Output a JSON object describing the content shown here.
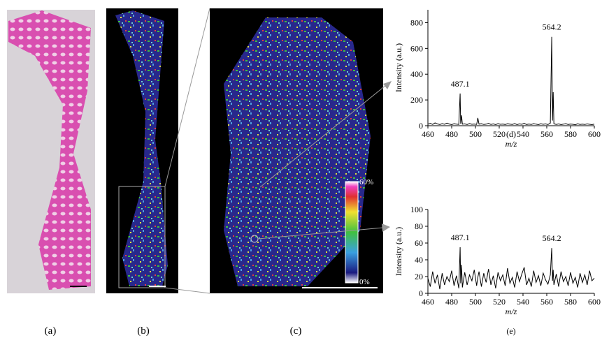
{
  "panel_labels": [
    "(a)",
    "(b)",
    "(c)"
  ],
  "colorbar": {
    "max_label": "60%",
    "min_label": "0%"
  },
  "chart_data": [
    {
      "type": "line",
      "panel_label": "(d)",
      "x_label": "m/z",
      "y_label": "Intensity (a.u.)",
      "color": "#000000",
      "xlim": [
        460,
        600
      ],
      "xticks": [
        460,
        480,
        500,
        520,
        540,
        560,
        580,
        600
      ],
      "ylim": [
        0,
        900
      ],
      "yticks": [
        0,
        200,
        400,
        600,
        800
      ],
      "x": [
        460,
        462,
        464,
        466,
        468,
        470,
        472,
        474,
        476,
        478,
        480,
        482,
        484,
        486,
        487.1,
        487.6,
        488.3,
        489,
        491,
        493,
        495,
        497,
        499,
        501,
        502,
        503,
        505,
        507,
        509,
        511,
        513,
        515,
        517,
        519,
        521,
        523,
        525,
        527,
        529,
        531,
        533,
        535,
        537,
        539,
        541,
        543,
        545,
        547,
        549,
        551,
        553,
        555,
        557,
        559,
        561,
        563,
        564.2,
        564.8,
        565.4,
        566,
        568,
        570,
        572,
        574,
        576,
        578,
        580,
        582,
        584,
        586,
        588,
        590,
        592,
        594,
        596,
        598,
        600
      ],
      "values": [
        12,
        18,
        10,
        22,
        14,
        9,
        16,
        11,
        20,
        13,
        8,
        15,
        12,
        10,
        250,
        15,
        80,
        12,
        14,
        9,
        17,
        11,
        13,
        10,
        60,
        12,
        15,
        9,
        12,
        18,
        10,
        14,
        8,
        16,
        11,
        13,
        9,
        15,
        12,
        10,
        17,
        8,
        14,
        11,
        19,
        9,
        13,
        10,
        16,
        12,
        8,
        15,
        11,
        14,
        9,
        20,
        690,
        40,
        260,
        15,
        10,
        14,
        8,
        12,
        16,
        9,
        13,
        11,
        7,
        15,
        10,
        12,
        9,
        14,
        11,
        8,
        12
      ],
      "annotations": [
        {
          "text": "487.1",
          "x": 487.1
        },
        {
          "text": "564.2",
          "x": 564.2
        }
      ]
    },
    {
      "type": "line",
      "panel_label": "(e)",
      "x_label": "m/z",
      "y_label": "Intensity (a.u.)",
      "color": "#000000",
      "xlim": [
        460,
        600
      ],
      "xticks": [
        460,
        480,
        500,
        520,
        540,
        560,
        580,
        600
      ],
      "ylim": [
        0,
        100
      ],
      "yticks": [
        0,
        20,
        40,
        60,
        80,
        100
      ],
      "x": [
        460,
        462,
        464,
        466,
        468,
        470,
        472,
        474,
        476,
        478,
        480,
        482,
        484,
        486,
        487.1,
        487.6,
        488.3,
        489,
        491,
        493,
        495,
        497,
        499,
        501,
        502,
        503,
        505,
        507,
        509,
        511,
        513,
        515,
        517,
        519,
        521,
        523,
        525,
        527,
        529,
        531,
        533,
        535,
        537,
        539,
        541,
        543,
        545,
        547,
        549,
        551,
        553,
        555,
        557,
        559,
        561,
        563,
        564.2,
        564.8,
        565.4,
        566,
        568,
        570,
        572,
        574,
        576,
        578,
        580,
        582,
        584,
        586,
        588,
        590,
        592,
        594,
        596,
        598,
        600
      ],
      "values": [
        18,
        8,
        26,
        12,
        22,
        5,
        24,
        10,
        20,
        14,
        27,
        9,
        21,
        6,
        55,
        12,
        34,
        7,
        25,
        10,
        22,
        15,
        28,
        9,
        19,
        26,
        8,
        24,
        13,
        29,
        10,
        21,
        6,
        25,
        15,
        22,
        9,
        30,
        12,
        19,
        7,
        26,
        14,
        23,
        31,
        10,
        18,
        8,
        27,
        13,
        21,
        9,
        24,
        16,
        11,
        22,
        54,
        15,
        28,
        10,
        23,
        8,
        26,
        14,
        20,
        9,
        25,
        12,
        19,
        7,
        24,
        13,
        22,
        10,
        27,
        15,
        18
      ],
      "annotations": [
        {
          "text": "487.1",
          "x": 487.1
        },
        {
          "text": "564.2",
          "x": 564.2
        }
      ]
    }
  ]
}
